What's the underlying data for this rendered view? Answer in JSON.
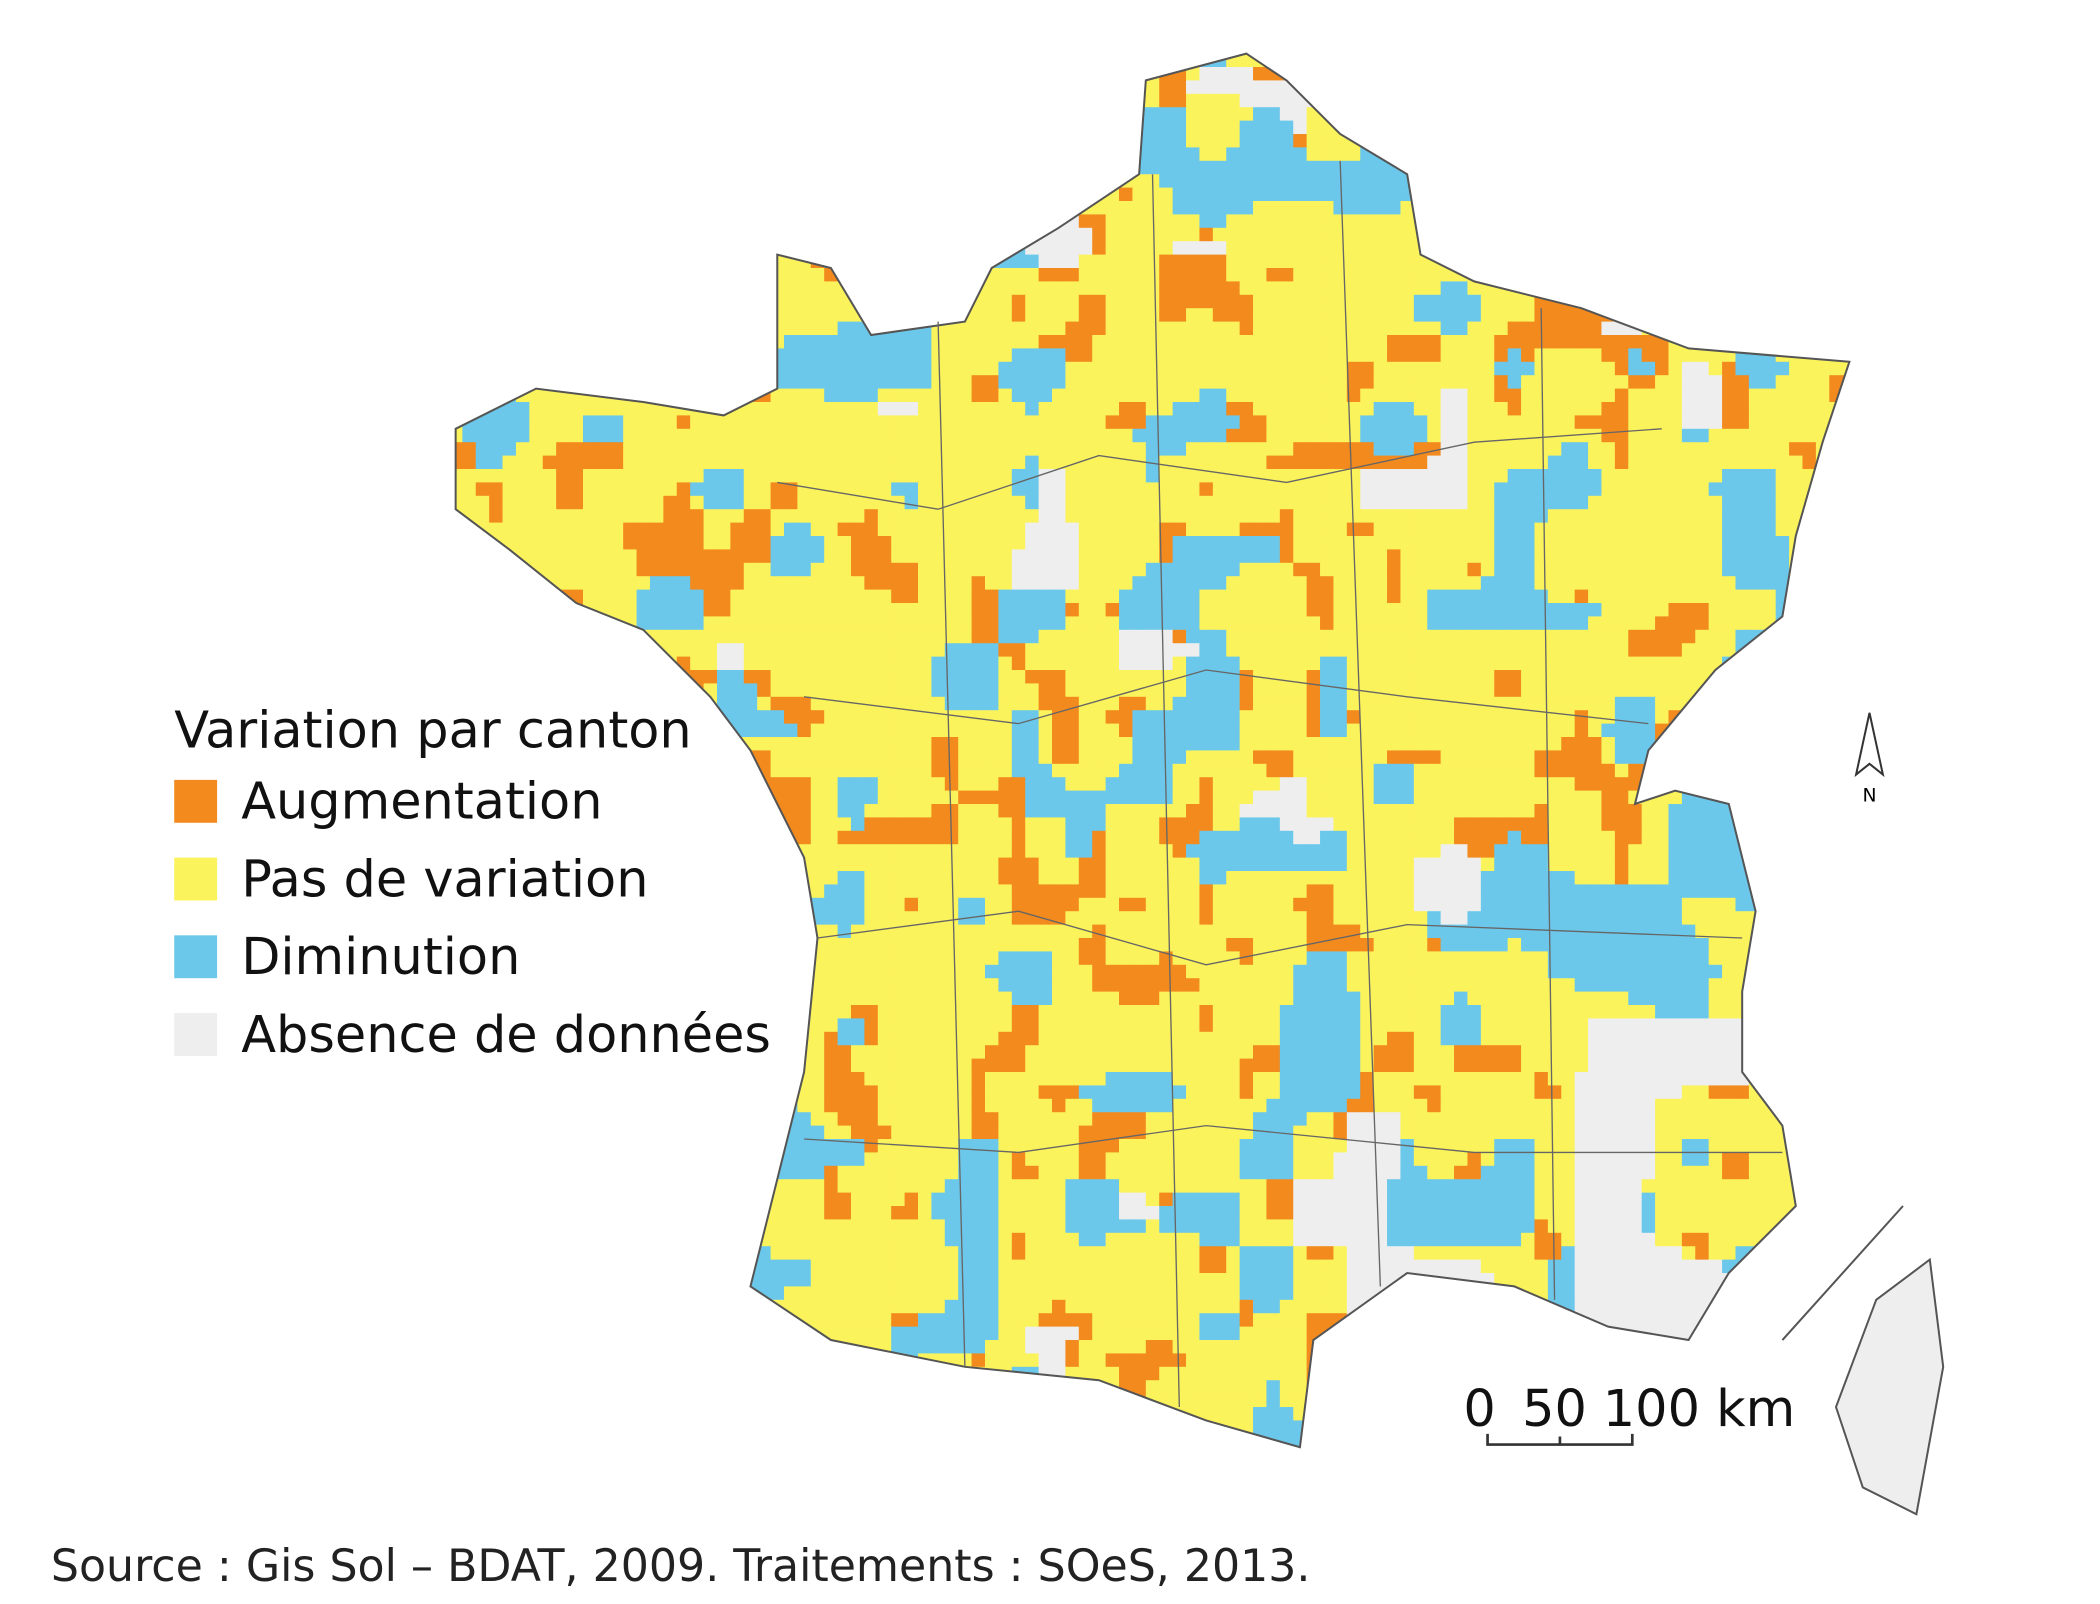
{
  "legend": {
    "title": "Variation par canton",
    "items": [
      {
        "label": "Augmentation",
        "color": "#f28a1e"
      },
      {
        "label": "Pas de variation",
        "color": "#fbf35c"
      },
      {
        "label": "Diminution",
        "color": "#6cc8ea"
      },
      {
        "label": "Absence de données",
        "color": "#eeeeee"
      }
    ]
  },
  "scale_bar": {
    "labels": [
      "0",
      "50",
      "100 km"
    ]
  },
  "north_label": "N",
  "source": "Source : Gis Sol – BDAT, 2009. Traitements : SOeS, 2013."
}
